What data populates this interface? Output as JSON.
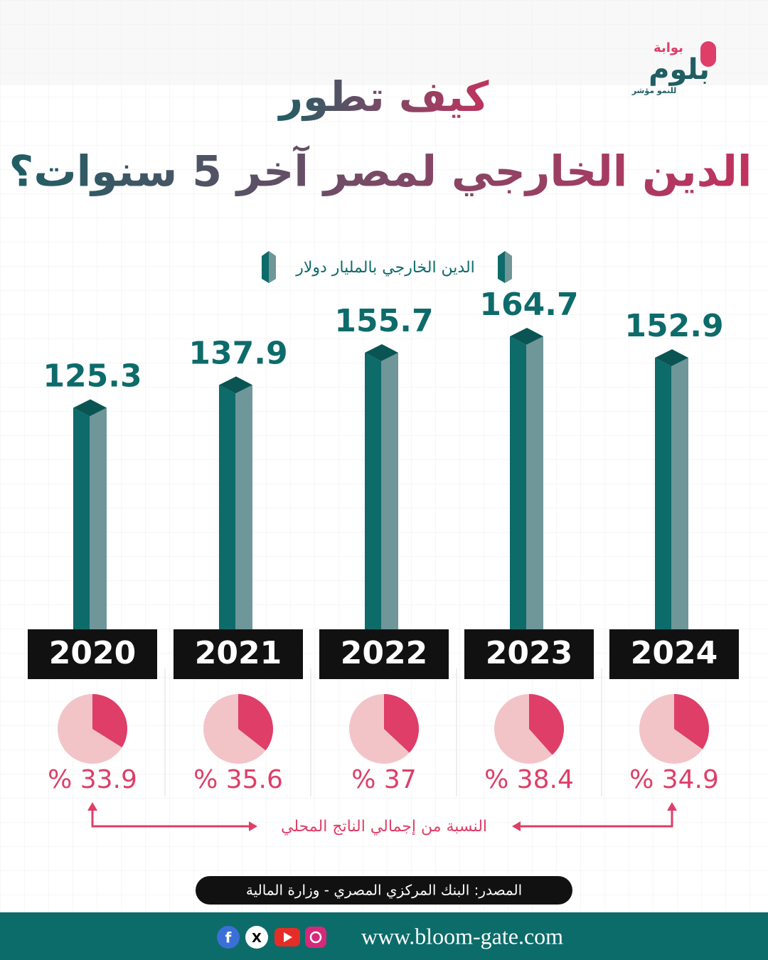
{
  "chart_data": [
    {
      "type": "bar",
      "title": "كيف تطور",
      "subtitle": "الدين الخارجي لمصر آخر 5 سنوات؟",
      "categories": [
        "2020",
        "2021",
        "2022",
        "2023",
        "2024"
      ],
      "series": [
        {
          "name": "الدين الخارجي بالمليار دولار",
          "color": "#0d6b6a",
          "values": [
            125.3,
            137.9,
            155.7,
            164.7,
            152.9
          ]
        }
      ]
    },
    {
      "type": "pie",
      "title": "النسبة من إجمالي الناتج المحلي",
      "color": "#de3e68",
      "values": [
        33.9,
        35.6,
        37,
        38.4,
        34.9
      ],
      "value_labels": [
        "% 33.9",
        "% 35.6",
        "% 37",
        "% 38.4",
        "% 34.9"
      ]
    }
  ],
  "brand": {
    "name": "بلوم",
    "prefix": "بوابة",
    "tagline": "للنمو مؤشر"
  },
  "source": "المصدر: البنك المركزي المصري - وزارة المالية",
  "website": "www.bloom-gate.com"
}
